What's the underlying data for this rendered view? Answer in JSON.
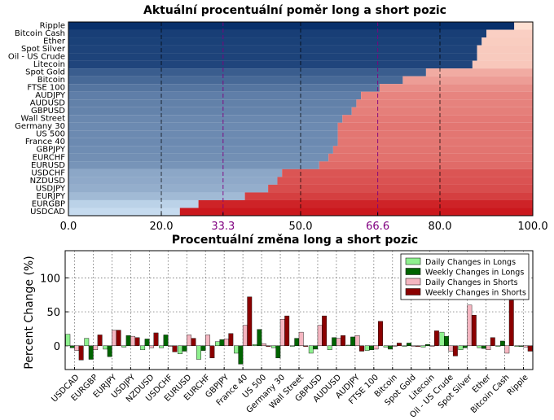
{
  "chart_data": [
    {
      "type": "bar",
      "orientation": "horizontal",
      "stacked": true,
      "title": "Aktuální procentuální poměr long a short pozic",
      "categories": [
        "Ripple",
        "Bitcoin Cash",
        "Ether",
        "Spot Silver",
        "Oil - US Crude",
        "Litecoin",
        "Spot Gold",
        "Bitcoin",
        "FTSE 100",
        "AUDJPY",
        "AUDUSD",
        "GBPUSD",
        "Wall Street",
        "Germany 30",
        "US 500",
        "France 40",
        "GBPJPY",
        "EURCHF",
        "EURUSD",
        "USDCHF",
        "NZDUSD",
        "USDJPY",
        "EURJPY",
        "EURGBP",
        "USDCAD"
      ],
      "long_pct": [
        96,
        90,
        89,
        88,
        88,
        87,
        77,
        72,
        67,
        63,
        62,
        61,
        59,
        58,
        58,
        58,
        57,
        56,
        54,
        46,
        45,
        43,
        38,
        28,
        24
      ],
      "xlim": [
        0,
        100
      ],
      "xticks": [
        "0.0",
        "20.0",
        "33.3",
        "50.0",
        "66.6",
        "80.0",
        "100.0"
      ],
      "highlight_ticks": [
        "33.3",
        "66.6"
      ],
      "grid": true
    },
    {
      "type": "bar",
      "title": "Procentuální změna long a short pozic",
      "ylabel": "Percent Change (%)",
      "categories": [
        "USDCAD",
        "EURGBP",
        "EURJPY",
        "USDJPY",
        "NZDUSD",
        "USDCHF",
        "EURUSD",
        "EURCHF",
        "GBPJPY",
        "France 40",
        "US 500",
        "Germany 30",
        "Wall Street",
        "GBPUSD",
        "AUDUSD",
        "AUDJPY",
        "FTSE 100",
        "Bitcoin",
        "Spot Gold",
        "Litecoin",
        "Oil - US Crude",
        "Spot Silver",
        "Ether",
        "Bitcoin Cash",
        "Ripple"
      ],
      "yticks": [
        "0",
        "50",
        "100"
      ],
      "ylim": [
        -35,
        140
      ],
      "legend_position": "top-right",
      "grid": true,
      "series": [
        {
          "name": "Daily Changes in Longs",
          "color": "#8ef08e",
          "values": [
            17,
            11,
            -5,
            -2,
            -6,
            -3,
            -12,
            -20,
            6,
            -11,
            2,
            -3,
            0,
            -11,
            -6,
            1,
            -7,
            -2,
            0,
            -2,
            20,
            -6,
            -3,
            -1,
            -1
          ]
        },
        {
          "name": "Weekly Changes in Longs",
          "color": "#006400",
          "values": [
            -3,
            -20,
            -16,
            15,
            10,
            16,
            -8,
            -7,
            9,
            -27,
            24,
            -18,
            11,
            -5,
            12,
            13,
            -6,
            -5,
            4,
            2,
            14,
            -3,
            -4,
            7,
            -1
          ]
        },
        {
          "name": "Daily Changes in Shorts",
          "color": "#f5b6c1",
          "values": [
            -7,
            -6,
            23,
            14,
            -3,
            -1,
            16,
            16,
            10,
            30,
            3,
            39,
            20,
            30,
            11,
            15,
            -5,
            -1,
            0,
            -1,
            -8,
            60,
            -6,
            -11,
            -2
          ]
        },
        {
          "name": "Weekly Changes in Shorts",
          "color": "#8b0000",
          "values": [
            -21,
            16,
            23,
            12,
            19,
            -9,
            11,
            -18,
            18,
            72,
            -1,
            44,
            -1,
            44,
            15,
            -8,
            36,
            4,
            -1,
            22,
            -15,
            45,
            12,
            67,
            -8
          ]
        }
      ]
    }
  ]
}
